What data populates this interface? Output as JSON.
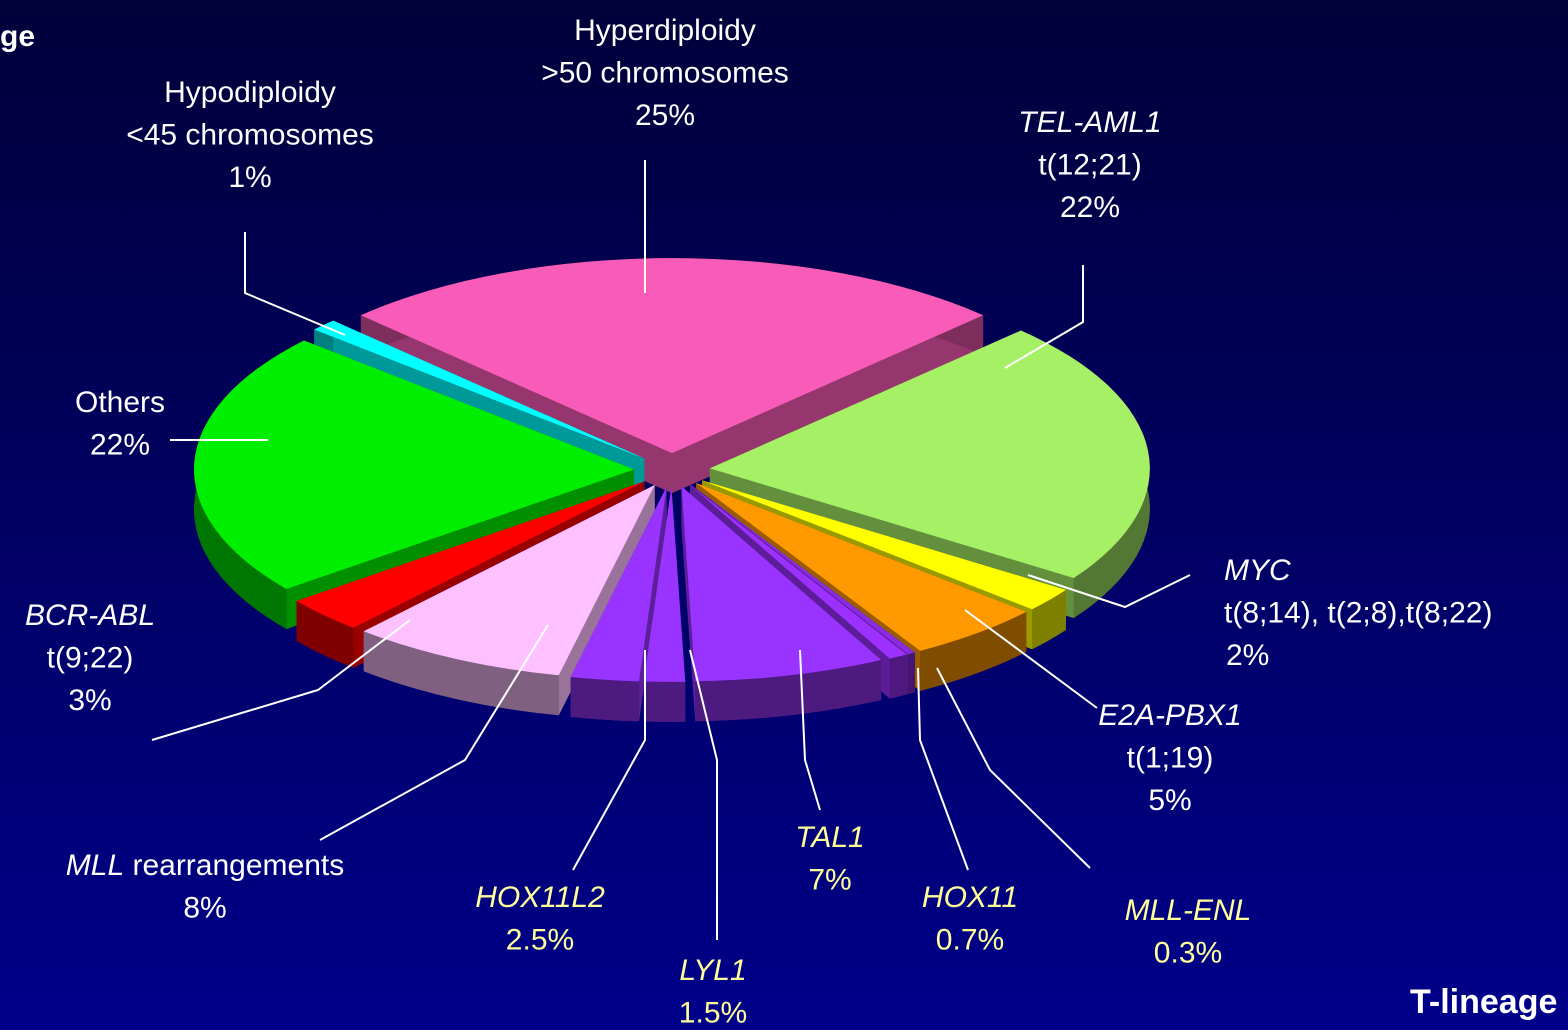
{
  "chart_data": {
    "type": "pie",
    "title": "T-lineage",
    "corner_text": "ge",
    "categories": [
      "Hyperdiploidy",
      "TEL-AML1",
      "MYC",
      "E2A-PBX1",
      "MLL-ENL",
      "HOX11",
      "TAL1",
      "LYL1",
      "HOX11L2",
      "MLL rearrangements",
      "BCR-ABL",
      "Others",
      "Hypodiploidy"
    ],
    "details": [
      ">50 chromosomes",
      "t(12;21)",
      "t(8;14), t(2;8),t(8;22)",
      "t(1;19)",
      null,
      null,
      null,
      null,
      null,
      null,
      "t(9;22)",
      null,
      "<45 chromosomes"
    ],
    "values": [
      25,
      22,
      2,
      5,
      0.3,
      0.7,
      7,
      1.5,
      2.5,
      8,
      3,
      22,
      1
    ],
    "value_labels": [
      "25%",
      "22%",
      "2%",
      "5%",
      "0.3%",
      "0.7%",
      "7%",
      "1.5%",
      "2.5%",
      "8%",
      "3%",
      "22%",
      "1%"
    ],
    "colors": [
      "#f95cb8",
      "#a6f066",
      "#ffff00",
      "#ff9900",
      "#8a2be2",
      "#9b30ff",
      "#9933ff",
      "#9933ff",
      "#9933ff",
      "#ffc0ff",
      "#ff0000",
      "#00ee00",
      "#00ffff"
    ],
    "label_colors": [
      "#ffffff",
      "#ffffff",
      "#ffffff",
      "#ffffff",
      "#ffff99",
      "#ffff99",
      "#ffff99",
      "#ffff99",
      "#ffff99",
      "#ffffff",
      "#ffffff",
      "#ffffff",
      "#ffffff"
    ],
    "italic": [
      "none",
      "all",
      "all",
      "all",
      "all",
      "all",
      "all",
      "all",
      "all",
      "first",
      "all",
      "none",
      "none"
    ]
  }
}
